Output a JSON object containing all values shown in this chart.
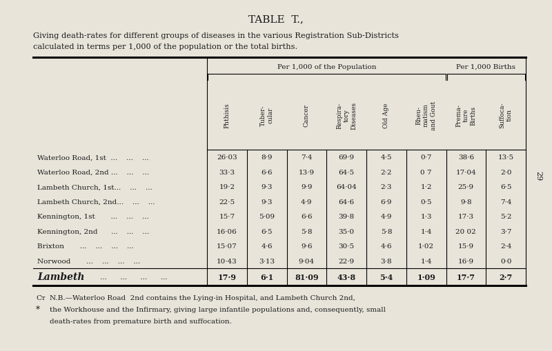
{
  "title": "TABLE  T.,",
  "subtitle_line1": "Giving death-rates for different groups of diseases in the various Registration Sub-Districts",
  "subtitle_line2": "calculated in terms per 1,000 of the population or the total births.",
  "group1_label": "Per 1,000 of the Population",
  "group2_label": "Per 1,000 Births",
  "col_headers": [
    "Phthisis",
    "Tuber-\ncular",
    "Cancer",
    "Respira-\ntory\nDiseases",
    "Old Age",
    "Rheu-\nmatism\nand Gout",
    "Prema-\nture\nBirths",
    "Suffoca-\ntion"
  ],
  "row_labels_plain": [
    "Waterloo Road, 1st  ...    ...    ...",
    "Waterloo Road, 2nd ...    ...    ...",
    "Lambeth Church, 1st...    ...    ...",
    "Lambeth Church, 2nd...    ...    ...",
    "Kennington, 1st       ...    ...    ...",
    "Kennington, 2nd      ...    ...    ...",
    "Brixton       ...    ...    ...    ...",
    "Norwood       ...    ...    ...    ..."
  ],
  "summary_label": "Lambeth",
  "summary_dots": "...      ...      ...      ...",
  "data": [
    [
      "26·03",
      "8·9",
      "7·4",
      "69·9",
      "4·5",
      "0·7",
      "38·6",
      "13·5"
    ],
    [
      "33·3",
      "6·6",
      "13·9",
      "64·5",
      "2·2",
      "0 7",
      "17·04",
      "2·0"
    ],
    [
      "19·2",
      "9·3",
      "9·9",
      "64·04",
      "2·3",
      "1·2",
      "25·9",
      "6·5"
    ],
    [
      "22·5",
      "9·3",
      "4·9",
      "64·6",
      "6·9",
      "0·5",
      "9·8",
      "7·4"
    ],
    [
      "15·7",
      "5·09",
      "6·6",
      "39·8",
      "4·9",
      "1·3",
      "17·3",
      "5·2"
    ],
    [
      "16·06",
      "6·5",
      "5·8",
      "35·0",
      "5·8",
      "1·4",
      "20 02",
      "3·7"
    ],
    [
      "15·07",
      "4·6",
      "9·6",
      "30·5",
      "4·6",
      "1·02",
      "15·9",
      "2·4"
    ],
    [
      "10·43",
      "3·13",
      "9·04",
      "22·9",
      "3·8",
      "1·4",
      "16·9",
      "0·0"
    ]
  ],
  "summary_data": [
    "17·9",
    "6·1",
    "81·09",
    "43·8",
    "5·4",
    "1·09",
    "17·7",
    "2·7"
  ],
  "footnote_sym1": "Cᴛ",
  "footnote_sym2": "*",
  "footnote_line1": "N.B.—Waterloo Road  2nd contains the Lying-in Hospital, and Lambeth Church 2nd,",
  "footnote_line2": "the Workhouse and the Infirmary, giving large infantile populations and, consequently, small",
  "footnote_line3": "death-rates from premature birth and suffocation.",
  "bg_color": "#e8e4da",
  "text_color": "#1a1a1a",
  "page_number": "29"
}
